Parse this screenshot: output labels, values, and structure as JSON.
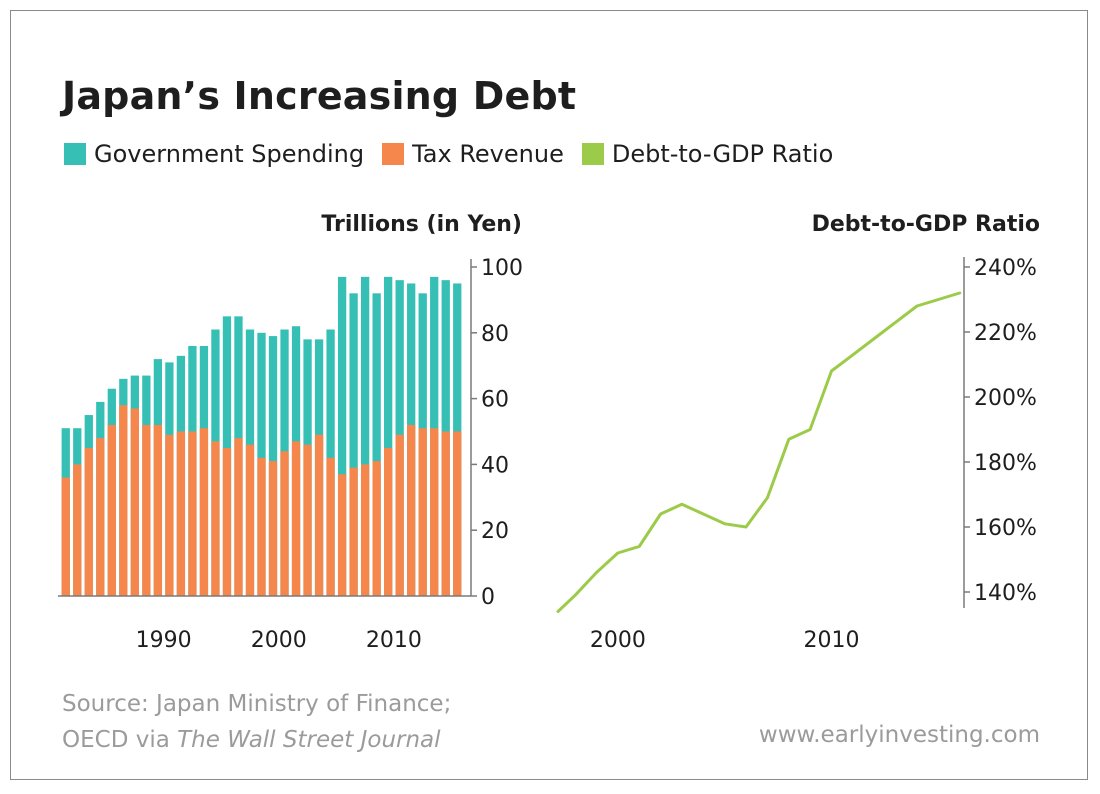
{
  "title": "Japan’s Increasing Debt",
  "legend": [
    {
      "label": "Government Spending",
      "color": "#35bfb5"
    },
    {
      "label": "Tax Revenue",
      "color": "#f5874d"
    },
    {
      "label": "Debt-to-GDP Ratio",
      "color": "#9ccb4a"
    }
  ],
  "source": {
    "line1": "Source: Japan Ministry of Finance;",
    "line2_prefix": "OECD via ",
    "line2_italic": "The Wall Street Journal"
  },
  "website": "www.earlyinvesting.com",
  "chart_data": [
    {
      "type": "bar",
      "stacked": false,
      "overlap": true,
      "title": "Trillions (in Yen)",
      "x": [
        1981,
        1982,
        1983,
        1984,
        1985,
        1986,
        1987,
        1988,
        1989,
        1990,
        1991,
        1992,
        1993,
        1994,
        1995,
        1996,
        1997,
        1998,
        1999,
        2000,
        2001,
        2002,
        2003,
        2004,
        2005,
        2006,
        2007,
        2008,
        2009,
        2010,
        2011,
        2012,
        2013,
        2014,
        2015
      ],
      "xticks": [
        1990,
        2000,
        2010
      ],
      "xtick_labels": [
        "1990",
        "2000",
        "2010"
      ],
      "series": [
        {
          "name": "Government Spending",
          "color": "#35bfb5",
          "values": [
            51,
            51,
            55,
            59,
            63,
            66,
            67,
            67,
            72,
            71,
            73,
            76,
            76,
            81,
            85,
            85,
            81,
            80,
            79,
            81,
            82,
            78,
            78,
            81,
            97,
            92,
            97,
            92,
            97,
            96,
            95,
            92,
            97,
            96,
            95
          ]
        },
        {
          "name": "Tax Revenue",
          "color": "#f5874d",
          "values": [
            36,
            40,
            45,
            48,
            52,
            58,
            57,
            52,
            52,
            49,
            50,
            50,
            51,
            47,
            45,
            48,
            46,
            42,
            41,
            44,
            47,
            46,
            49,
            42,
            37,
            39,
            40,
            41,
            45,
            49,
            52,
            51,
            51,
            50,
            50
          ]
        }
      ],
      "ylim": [
        0,
        100
      ],
      "yticks": [
        0,
        20,
        40,
        60,
        80,
        100
      ],
      "ytick_labels": [
        "0",
        "20",
        "40",
        "60",
        "80",
        "100"
      ],
      "yaxis_side": "right",
      "grid": false
    },
    {
      "type": "line",
      "title": "Debt-to-GDP Ratio",
      "series": [
        {
          "name": "Debt-to-GDP Ratio",
          "color": "#9ccb4a",
          "x": [
            1997.2,
            1998,
            1999,
            2000,
            2001,
            2002,
            2003,
            2004,
            2005,
            2006,
            2007,
            2008,
            2009,
            2010,
            2011,
            2012,
            2013,
            2014,
            2015,
            2016
          ],
          "values": [
            134,
            139,
            146,
            152,
            154,
            164,
            167,
            164,
            161,
            160,
            169,
            187,
            190,
            208,
            213,
            218,
            223,
            228,
            230,
            232
          ]
        }
      ],
      "xlim": [
        1997.2,
        2016.2
      ],
      "xticks": [
        2000,
        2010
      ],
      "xtick_labels": [
        "2000",
        "2010"
      ],
      "ylim": [
        140,
        240
      ],
      "yticks": [
        140,
        160,
        180,
        200,
        220,
        240
      ],
      "ytick_labels": [
        "140%",
        "160%",
        "180%",
        "200%",
        "220%",
        "240%"
      ],
      "yaxis_side": "right",
      "grid": false
    }
  ]
}
